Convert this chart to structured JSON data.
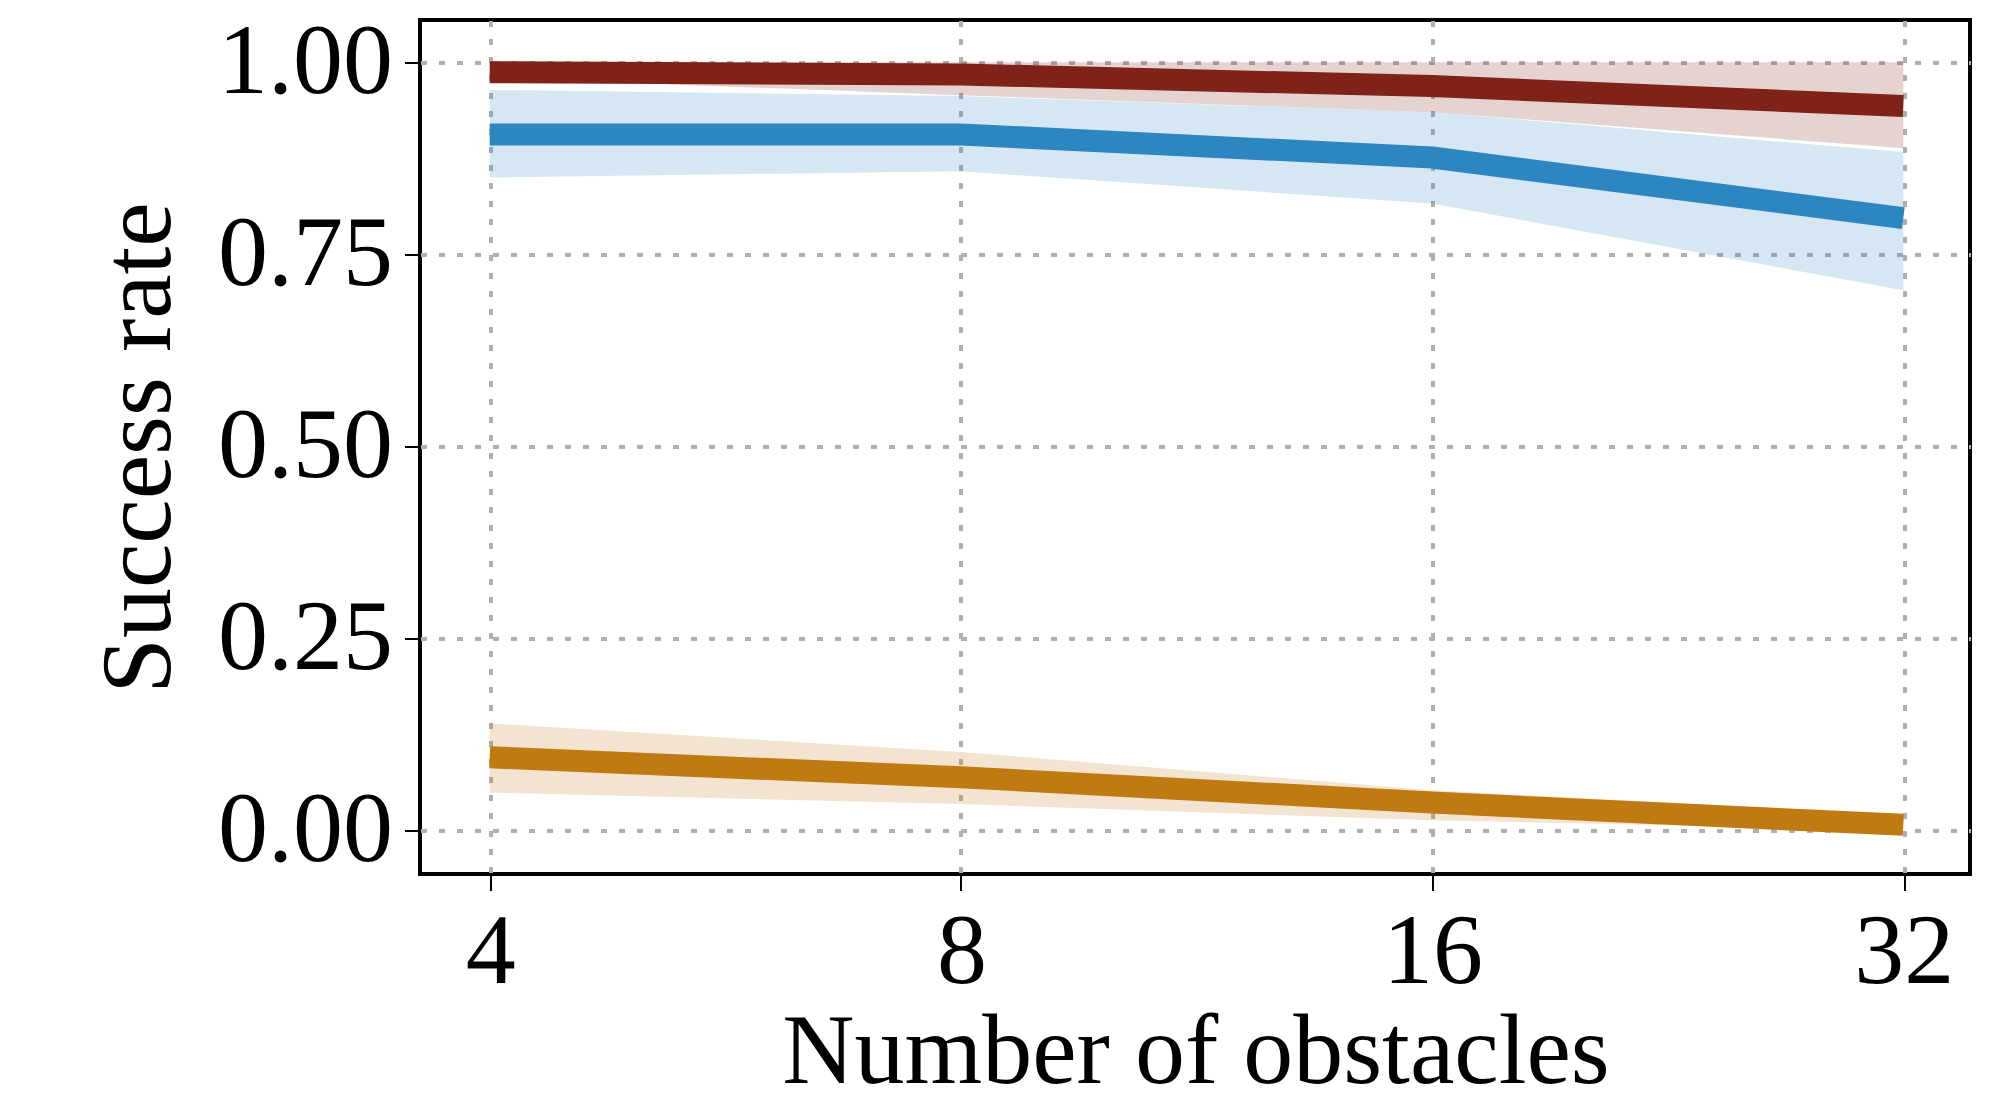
{
  "chart_data": {
    "type": "line",
    "xlabel": "Number of obstacles",
    "ylabel": "Success rate",
    "x": [
      4,
      8,
      16,
      32
    ],
    "log": "x",
    "xlim": [
      3.61,
      35.3
    ],
    "xticks": [
      4,
      8,
      16,
      32
    ],
    "ylim": [
      -0.057,
      1.055
    ],
    "yticks": [
      {
        "value": 0,
        "label": "0.00"
      },
      {
        "value": 0.25,
        "label": "0.25"
      },
      {
        "value": 0.5,
        "label": "0.50"
      },
      {
        "value": 0.75,
        "label": "0.75"
      },
      {
        "value": 1,
        "label": "1.00"
      }
    ],
    "grid": true,
    "line_style": "solid",
    "marker": "none",
    "series": [
      {
        "color": "#7f2218",
        "values": [
          0.987,
          0.984,
          0.969,
          0.943
        ],
        "lower": [
          0.98,
          0.957,
          0.935,
          0.888
        ],
        "upper": [
          1.0,
          1.0,
          1.0,
          1.0
        ]
      },
      {
        "color": "#2e86c1",
        "values": [
          0.906,
          0.906,
          0.876,
          0.797
        ],
        "lower": [
          0.85,
          0.858,
          0.816,
          0.703
        ],
        "upper": [
          0.964,
          0.956,
          0.935,
          0.883
        ]
      },
      {
        "color": "#bf7a12",
        "values": [
          0.095,
          0.069,
          0.036,
          0.007
        ],
        "lower": [
          0.049,
          0.034,
          0.013,
          0.0
        ],
        "upper": [
          0.139,
          0.102,
          0.052,
          0.02
        ]
      }
    ]
  }
}
